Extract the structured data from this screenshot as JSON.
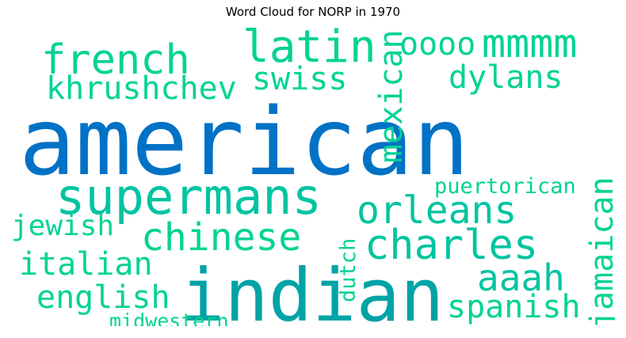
{
  "chart_data": {
    "type": "wordcloud",
    "title": "Word Cloud for NORP in 1970",
    "palette": [
      "#0072c6",
      "#00a3a6",
      "#00c4a0",
      "#00d394"
    ],
    "words": [
      {
        "text": "american",
        "color": "#0072c6",
        "orientation": "horizontal"
      },
      {
        "text": "indian",
        "color": "#00a3a6",
        "orientation": "horizontal"
      },
      {
        "text": "supermans",
        "color": "#00c4a0",
        "orientation": "horizontal"
      },
      {
        "text": "french",
        "color": "#00d394",
        "orientation": "horizontal"
      },
      {
        "text": "latin",
        "color": "#00d394",
        "orientation": "horizontal"
      },
      {
        "text": "mmmm",
        "color": "#00d394",
        "orientation": "horizontal"
      },
      {
        "text": "oooo",
        "color": "#00d394",
        "orientation": "horizontal"
      },
      {
        "text": "khrushchev",
        "color": "#00d394",
        "orientation": "horizontal"
      },
      {
        "text": "swiss",
        "color": "#00d394",
        "orientation": "horizontal"
      },
      {
        "text": "dylans",
        "color": "#00d394",
        "orientation": "horizontal"
      },
      {
        "text": "mexican",
        "color": "#00d394",
        "orientation": "vertical"
      },
      {
        "text": "orleans",
        "color": "#00c4a0",
        "orientation": "horizontal"
      },
      {
        "text": "chinese",
        "color": "#00d394",
        "orientation": "horizontal"
      },
      {
        "text": "charles",
        "color": "#00c4a0",
        "orientation": "horizontal"
      },
      {
        "text": "puertorican",
        "color": "#00d394",
        "orientation": "horizontal"
      },
      {
        "text": "jamaican",
        "color": "#00d394",
        "orientation": "vertical"
      },
      {
        "text": "jewish",
        "color": "#00d394",
        "orientation": "horizontal"
      },
      {
        "text": "italian",
        "color": "#00d394",
        "orientation": "horizontal"
      },
      {
        "text": "aaah",
        "color": "#00c4a0",
        "orientation": "horizontal"
      },
      {
        "text": "dutch",
        "color": "#00d394",
        "orientation": "vertical"
      },
      {
        "text": "english",
        "color": "#00d394",
        "orientation": "horizontal"
      },
      {
        "text": "spanish",
        "color": "#00d394",
        "orientation": "horizontal"
      },
      {
        "text": "midwestern",
        "color": "#00d394",
        "orientation": "horizontal"
      }
    ]
  }
}
